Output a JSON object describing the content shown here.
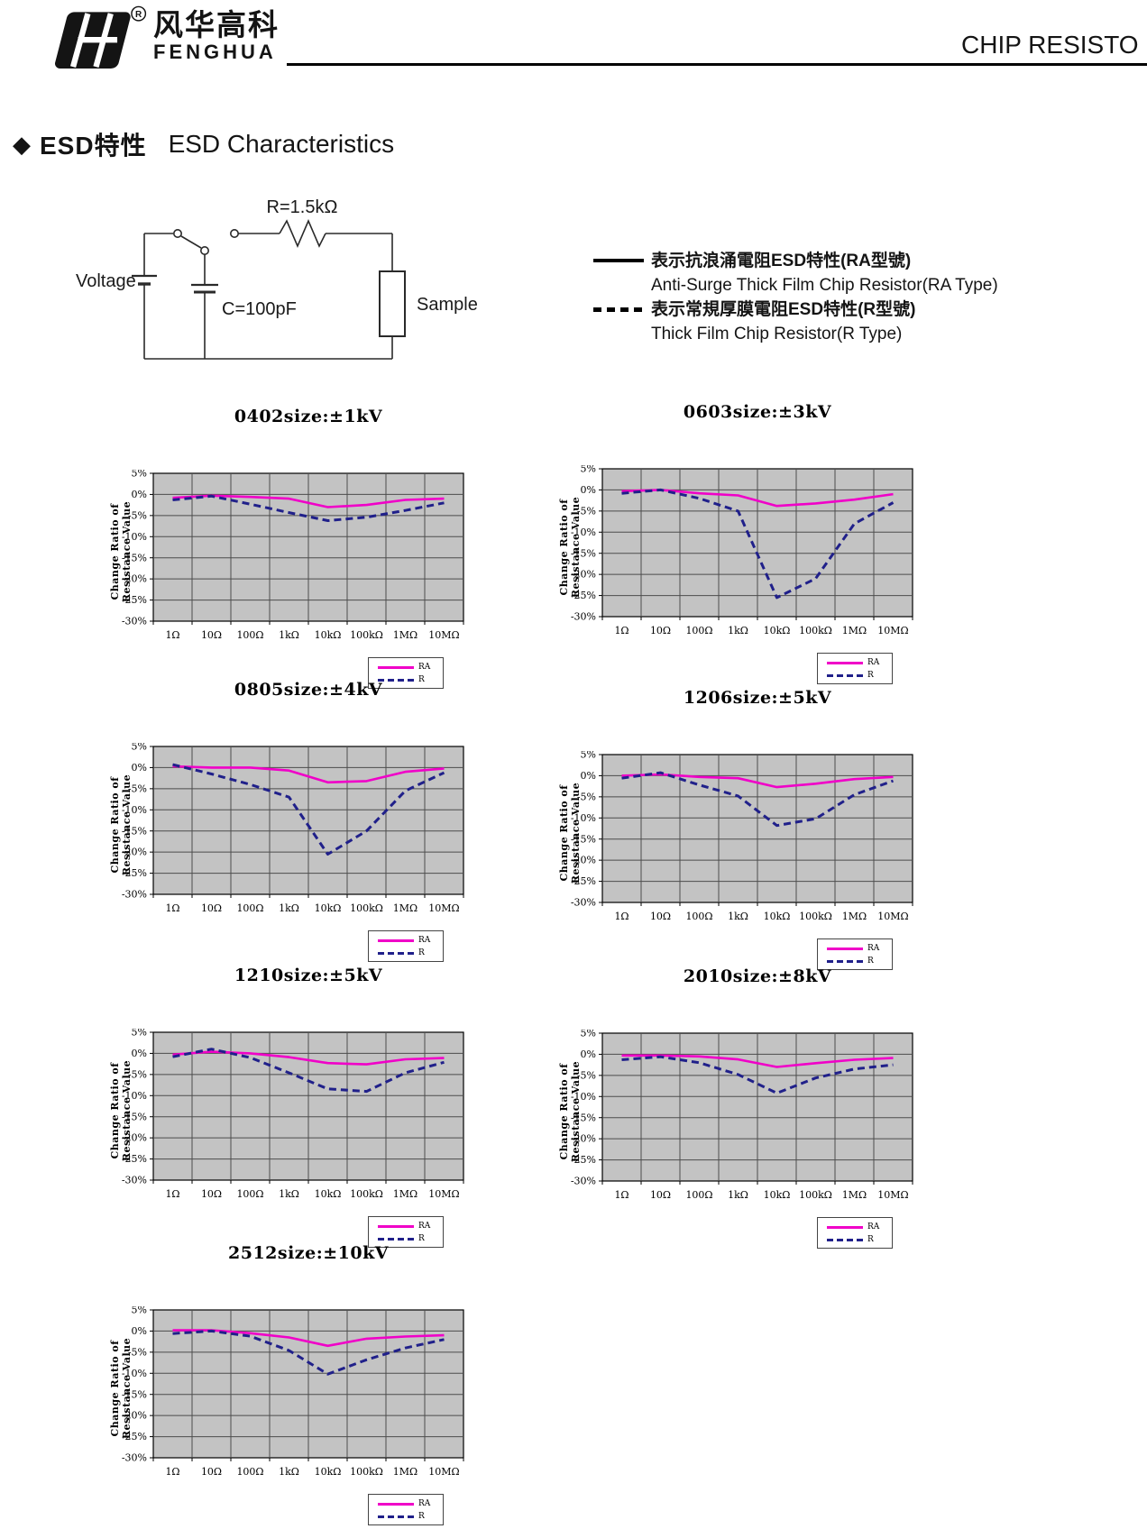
{
  "header": {
    "logo_cn": "风华高科",
    "logo_en": "FENGHUA",
    "registered_mark": "R",
    "page_title": "CHIP RESISTO"
  },
  "section": {
    "bullet": "◆",
    "title_cn": "ESD特性",
    "title_en": "ESD Characteristics"
  },
  "circuit": {
    "voltage_label": "Voltage",
    "capacitor_label": "C=100pF",
    "resistor_label": "R=1.5kΩ",
    "sample_label": "Sample"
  },
  "series_legend": {
    "entries": [
      {
        "line_style": "solid",
        "cn": "表示抗浪涌電阻ESD特性(RA型號)",
        "en": "Anti-Surge Thick Film Chip Resistor(RA Type)"
      },
      {
        "line_style": "dashed",
        "cn": "表示常規厚膜電阻ESD特性(R型號)",
        "en": "Thick Film Chip Resistor(R Type)"
      }
    ]
  },
  "colors": {
    "ra_line": "#f000c8",
    "r_line": "#20208a",
    "plot_bg": "#c3c3c3",
    "grid": "#4c4c4c",
    "plot_border": "#000000"
  },
  "chart_data": [
    {
      "type": "line",
      "title": "0402size:±1kV",
      "x_labels": [
        "1Ω",
        "10Ω",
        "100Ω",
        "1kΩ",
        "10kΩ",
        "100kΩ",
        "1MΩ",
        "10MΩ"
      ],
      "ylabel": "Change Ratio of  Resistance Value",
      "ytick_labels": [
        "5%",
        "0%",
        "-5%",
        "-10%",
        "-15%",
        "-20%",
        "-25%",
        "-30%"
      ],
      "ylim": [
        -30,
        5
      ],
      "legend_position": "bottom-right",
      "legend_labels": [
        "RA",
        "R"
      ],
      "series": [
        {
          "name": "RA",
          "style": "solid",
          "color": "#f000c8",
          "values": [
            -0.8,
            -0.3,
            -0.6,
            -1.0,
            -3.0,
            -2.5,
            -1.3,
            -1.0
          ]
        },
        {
          "name": "R",
          "style": "dashed",
          "color": "#20208a",
          "values": [
            -1.3,
            -0.4,
            -2.3,
            -4.3,
            -6.2,
            -5.4,
            -3.8,
            -2.0
          ]
        }
      ]
    },
    {
      "type": "line",
      "title": "0603size:±3kV",
      "x_labels": [
        "1Ω",
        "10Ω",
        "100Ω",
        "1kΩ",
        "10kΩ",
        "100kΩ",
        "1MΩ",
        "10MΩ"
      ],
      "ylabel": "Change Ratio of\nResistance Value",
      "ytick_labels": [
        "5%",
        "0%",
        "-5%",
        "-10%",
        "-15%",
        "-20%",
        "-25%",
        "-30%"
      ],
      "ylim": [
        -30,
        5
      ],
      "legend_position": "bottom-right",
      "legend_labels": [
        "RA",
        "R"
      ],
      "series": [
        {
          "name": "RA",
          "style": "solid",
          "color": "#f000c8",
          "values": [
            -0.3,
            0.0,
            -0.8,
            -1.3,
            -3.8,
            -3.2,
            -2.3,
            -1.0
          ]
        },
        {
          "name": "R",
          "style": "dashed",
          "color": "#20208a",
          "values": [
            -0.8,
            0.0,
            -2.0,
            -5.0,
            -25.5,
            -21.0,
            -8.0,
            -3.0
          ]
        }
      ]
    },
    {
      "type": "line",
      "title": "0805size:±4kV",
      "x_labels": [
        "1Ω",
        "10Ω",
        "100Ω",
        "1kΩ",
        "10kΩ",
        "100kΩ",
        "1MΩ",
        "10MΩ"
      ],
      "ylabel": "Change Ratio of\nResistance Value",
      "ytick_labels": [
        "5%",
        "0%",
        "-5%",
        "-10%",
        "-15%",
        "-20%",
        "-25%",
        "-30%"
      ],
      "ylim": [
        -30,
        5
      ],
      "legend_position": "bottom-right",
      "legend_labels": [
        "RA",
        "R"
      ],
      "series": [
        {
          "name": "RA",
          "style": "solid",
          "color": "#f000c8",
          "values": [
            0.3,
            0.0,
            0.0,
            -0.7,
            -3.5,
            -3.2,
            -1.0,
            -0.2
          ]
        },
        {
          "name": "R",
          "style": "dashed",
          "color": "#20208a",
          "values": [
            0.7,
            -1.5,
            -4.0,
            -7.0,
            -20.5,
            -15.0,
            -5.5,
            -1.2
          ]
        }
      ]
    },
    {
      "type": "line",
      "title": "1206size:±5kV",
      "x_labels": [
        "1Ω",
        "10Ω",
        "100Ω",
        "1kΩ",
        "10kΩ",
        "100kΩ",
        "1MΩ",
        "10MΩ"
      ],
      "ylabel": "Change Ratio of\nResistance Value",
      "ytick_labels": [
        "5%",
        "0%",
        "-5%",
        "-10%",
        "-15%",
        "-20%",
        "-25%",
        "-30%"
      ],
      "ylim": [
        -30,
        5
      ],
      "legend_position": "bottom-right",
      "legend_labels": [
        "RA",
        "R"
      ],
      "series": [
        {
          "name": "RA",
          "style": "solid",
          "color": "#f000c8",
          "values": [
            0.0,
            0.3,
            -0.3,
            -0.6,
            -2.7,
            -1.9,
            -0.8,
            -0.3
          ]
        },
        {
          "name": "R",
          "style": "dashed",
          "color": "#20208a",
          "values": [
            -0.6,
            0.7,
            -2.2,
            -4.8,
            -11.8,
            -10.2,
            -4.5,
            -1.2
          ]
        }
      ]
    },
    {
      "type": "line",
      "title": "1210size:±5kV",
      "x_labels": [
        "1Ω",
        "10Ω",
        "100Ω",
        "1kΩ",
        "10kΩ",
        "100kΩ",
        "1MΩ",
        "10MΩ"
      ],
      "ylabel": "Change Ratio of\nResistance Value",
      "ytick_labels": [
        "5%",
        "0%",
        "-5%",
        "-10%",
        "-15%",
        "-20%",
        "-25%",
        "-30%"
      ],
      "ylim": [
        -30,
        5
      ],
      "legend_position": "bottom-right",
      "legend_labels": [
        "RA",
        "R"
      ],
      "series": [
        {
          "name": "RA",
          "style": "solid",
          "color": "#f000c8",
          "values": [
            -0.3,
            0.4,
            0.0,
            -0.9,
            -2.3,
            -2.6,
            -1.4,
            -1.1
          ]
        },
        {
          "name": "R",
          "style": "dashed",
          "color": "#20208a",
          "values": [
            -0.8,
            1.0,
            -1.0,
            -4.6,
            -8.4,
            -9.0,
            -4.6,
            -2.1
          ]
        }
      ]
    },
    {
      "type": "line",
      "title": "2010size:±8kV",
      "x_labels": [
        "1Ω",
        "10Ω",
        "100Ω",
        "1kΩ",
        "10kΩ",
        "100kΩ",
        "1MΩ",
        "10MΩ"
      ],
      "ylabel": "Change Ratio of\nResistance Value",
      "ytick_labels": [
        "5%",
        "0%",
        "-5%",
        "-10%",
        "-15%",
        "-20%",
        "-25%",
        "-30%"
      ],
      "ylim": [
        -30,
        5
      ],
      "legend_position": "bottom-right",
      "legend_labels": [
        "RA",
        "R"
      ],
      "series": [
        {
          "name": "RA",
          "style": "solid",
          "color": "#f000c8",
          "values": [
            -0.3,
            -0.3,
            -0.5,
            -1.2,
            -3.0,
            -2.1,
            -1.3,
            -0.9
          ]
        },
        {
          "name": "R",
          "style": "dashed",
          "color": "#20208a",
          "values": [
            -1.3,
            -0.6,
            -2.0,
            -4.8,
            -9.2,
            -5.6,
            -3.5,
            -2.5
          ]
        }
      ]
    },
    {
      "type": "line",
      "title": "2512size:±10kV",
      "x_labels": [
        "1Ω",
        "10Ω",
        "100Ω",
        "1kΩ",
        "10kΩ",
        "100kΩ",
        "1MΩ",
        "10MΩ"
      ],
      "ylabel": "Change Ratio of\nResistance Value",
      "ytick_labels": [
        "5%",
        "0%",
        "-5%",
        "-10%",
        "-15%",
        "-20%",
        "-25%",
        "-30%"
      ],
      "ylim": [
        -30,
        5
      ],
      "legend_position": "bottom-right",
      "legend_labels": [
        "RA",
        "R"
      ],
      "series": [
        {
          "name": "RA",
          "style": "solid",
          "color": "#f000c8",
          "values": [
            0.2,
            0.2,
            -0.5,
            -1.5,
            -3.5,
            -1.8,
            -1.3,
            -1.0
          ]
        },
        {
          "name": "R",
          "style": "dashed",
          "color": "#20208a",
          "values": [
            -0.6,
            0.0,
            -1.2,
            -4.6,
            -10.2,
            -6.8,
            -4.0,
            -2.0
          ]
        }
      ]
    }
  ]
}
